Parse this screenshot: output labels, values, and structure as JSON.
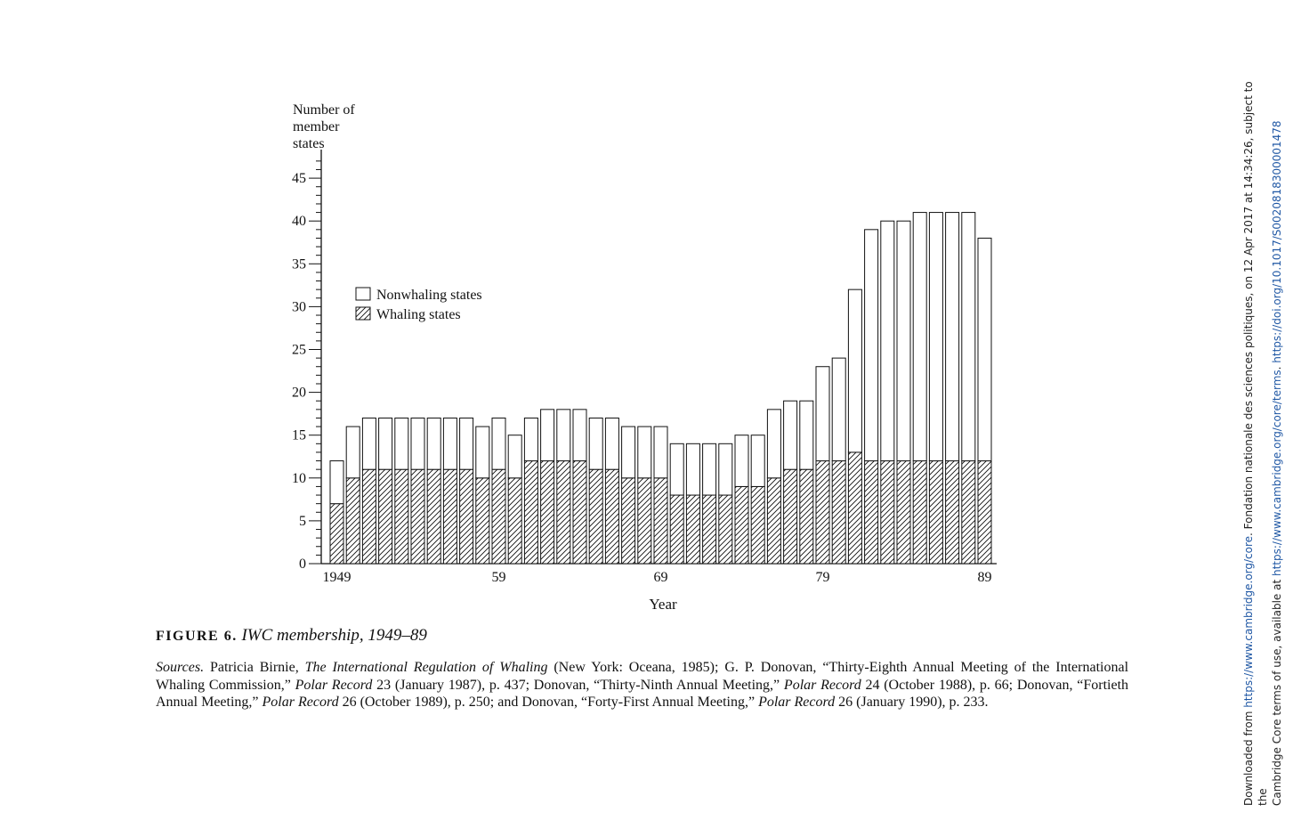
{
  "figure": {
    "label": "FIGURE 6.",
    "title": "IWC membership, 1949–89"
  },
  "sources": {
    "lead": "Sources.",
    "segments": [
      {
        "text": " Patricia Birnie, ",
        "italic": false
      },
      {
        "text": "The International Regulation of Whaling",
        "italic": true
      },
      {
        "text": " (New York: Oceana, 1985); G. P. Donovan, “Thirty-Eighth Annual Meeting of the International Whaling Commission,” ",
        "italic": false
      },
      {
        "text": "Polar Record",
        "italic": true
      },
      {
        "text": " 23 (January 1987), p. 437; Donovan, “Thirty-Ninth Annual Meeting,” ",
        "italic": false
      },
      {
        "text": "Polar Record",
        "italic": true
      },
      {
        "text": " 24 (October 1988), p. 66; Donovan, “Fortieth Annual Meeting,” ",
        "italic": false
      },
      {
        "text": "Polar Record",
        "italic": true
      },
      {
        "text": " 26 (October 1989), p. 250; and Donovan, “Forty-First Annual Meeting,” ",
        "italic": false
      },
      {
        "text": "Polar Record",
        "italic": true
      },
      {
        "text": " 26 (January 1990), p. 233.",
        "italic": false
      }
    ]
  },
  "sidebar": {
    "line1_prefix": "Downloaded from ",
    "line1_link1": "https://www.cambridge.org/core",
    "line1_suffix": ". Fondation nationale des sciences politiques, on 12 Apr 2017 at 14:34:26, subject to the",
    "line2_prefix": "Cambridge Core terms of use, available at ",
    "line2_link1": "https://www.cambridge.org/core/terms",
    "line2_sep": ". ",
    "line2_link2": "https://doi.org/10.1017/S0020818300001478"
  },
  "chart_data": {
    "type": "bar",
    "stacked": true,
    "title": "",
    "ylabel_lines": [
      "Number of",
      "member",
      "states"
    ],
    "xlabel": "Year",
    "ylim": [
      0,
      47
    ],
    "yticks": [
      0,
      5,
      10,
      15,
      20,
      25,
      30,
      35,
      40,
      45
    ],
    "xtick_labels": [
      {
        "year": 1949,
        "label": "1949"
      },
      {
        "year": 1959,
        "label": "59"
      },
      {
        "year": 1969,
        "label": "69"
      },
      {
        "year": 1979,
        "label": "79"
      },
      {
        "year": 1989,
        "label": "89"
      }
    ],
    "legend": {
      "placement": "upper-left",
      "entries": [
        {
          "name": "Nonwhaling states",
          "pattern": "blank"
        },
        {
          "name": "Whaling states",
          "pattern": "hatched"
        }
      ]
    },
    "x": [
      1949,
      1950,
      1951,
      1952,
      1953,
      1954,
      1955,
      1956,
      1957,
      1958,
      1959,
      1960,
      1961,
      1962,
      1963,
      1964,
      1965,
      1966,
      1967,
      1968,
      1969,
      1970,
      1971,
      1972,
      1973,
      1974,
      1975,
      1976,
      1977,
      1978,
      1979,
      1980,
      1981,
      1982,
      1983,
      1984,
      1985,
      1986,
      1987,
      1988,
      1989
    ],
    "series": [
      {
        "name": "Whaling states",
        "values": [
          7,
          10,
          11,
          11,
          11,
          11,
          11,
          11,
          11,
          10,
          11,
          10,
          12,
          12,
          12,
          12,
          11,
          11,
          10,
          10,
          10,
          8,
          8,
          8,
          8,
          9,
          9,
          10,
          11,
          11,
          12,
          12,
          13,
          12,
          12,
          12,
          12,
          12,
          12,
          12,
          12
        ]
      },
      {
        "name": "Nonwhaling states",
        "values": [
          5,
          6,
          6,
          6,
          6,
          6,
          6,
          6,
          6,
          6,
          6,
          5,
          5,
          6,
          6,
          6,
          6,
          6,
          6,
          6,
          6,
          6,
          6,
          6,
          6,
          6,
          6,
          8,
          8,
          8,
          11,
          12,
          19,
          27,
          28,
          28,
          29,
          29,
          29,
          29,
          26
        ]
      }
    ],
    "colors": {
      "ink": "#111111",
      "paper": "#ffffff"
    }
  }
}
